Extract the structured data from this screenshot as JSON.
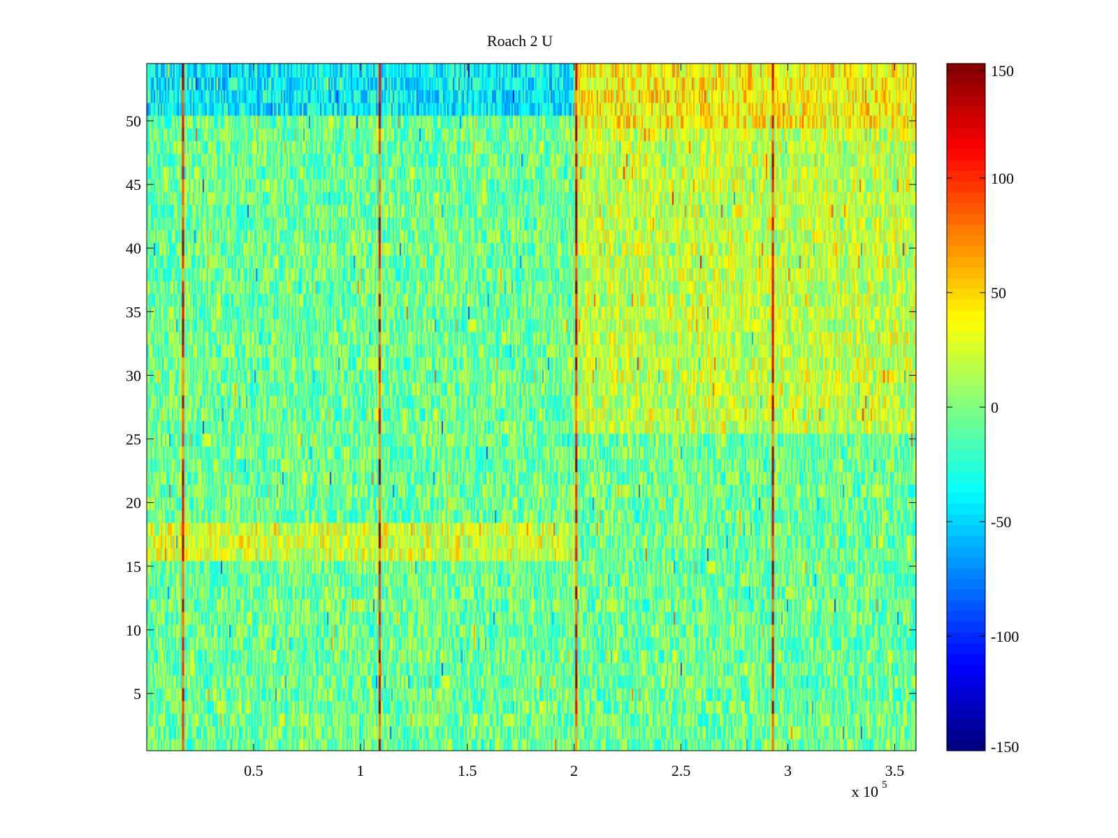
{
  "chart_data": {
    "type": "heatmap",
    "title": "Roach 2 U",
    "xlabel": "",
    "ylabel": "",
    "x_exponent_label": "x 10",
    "x_exponent_power": "5",
    "x_scale_factor": 100000,
    "xlim": [
      0.0,
      3.6
    ],
    "ylim": [
      0.5,
      54.5
    ],
    "x_ticks": [
      0.5,
      1,
      1.5,
      2,
      2.5,
      3,
      3.5
    ],
    "x_tick_labels": [
      "0.5",
      "1",
      "1.5",
      "2",
      "2.5",
      "3",
      "3.5"
    ],
    "y_ticks": [
      5,
      10,
      15,
      20,
      25,
      30,
      35,
      40,
      45,
      50
    ],
    "y_tick_labels": [
      "5",
      "10",
      "15",
      "20",
      "25",
      "30",
      "35",
      "40",
      "45",
      "50"
    ],
    "rows": 54,
    "colorbar": {
      "colormap": "jet",
      "clim": [
        -150,
        150
      ],
      "ticks": [
        150,
        100,
        50,
        0,
        -50,
        -100,
        -150
      ],
      "tick_labels": [
        "150",
        "100",
        "50",
        "0",
        "-50",
        "-100",
        "-150"
      ]
    },
    "regions": [
      {
        "x_from": 0.0,
        "x_to": 2.0,
        "y_from": 51,
        "y_to": 54,
        "typical_value": -40
      },
      {
        "x_from": 2.0,
        "x_to": 3.6,
        "y_from": 50,
        "y_to": 54,
        "typical_value": 40
      },
      {
        "x_from": 2.0,
        "x_to": 3.6,
        "y_from": 26,
        "y_to": 49,
        "typical_value": 20
      },
      {
        "x_from": 0.0,
        "x_to": 2.0,
        "y_from": 16,
        "y_to": 18,
        "typical_value": 25
      },
      {
        "x_from": 0.0,
        "x_to": 3.6,
        "y_from": 1,
        "y_to": 54,
        "typical_value": -5
      }
    ],
    "vertical_spikes": [
      {
        "x": 0.17,
        "value": 150
      },
      {
        "x": 1.09,
        "value": 150
      },
      {
        "x": 2.01,
        "value": 150
      },
      {
        "x": 2.93,
        "value": 150
      }
    ],
    "colors": {
      "axis": "#000000",
      "background": "#ffffff"
    }
  }
}
